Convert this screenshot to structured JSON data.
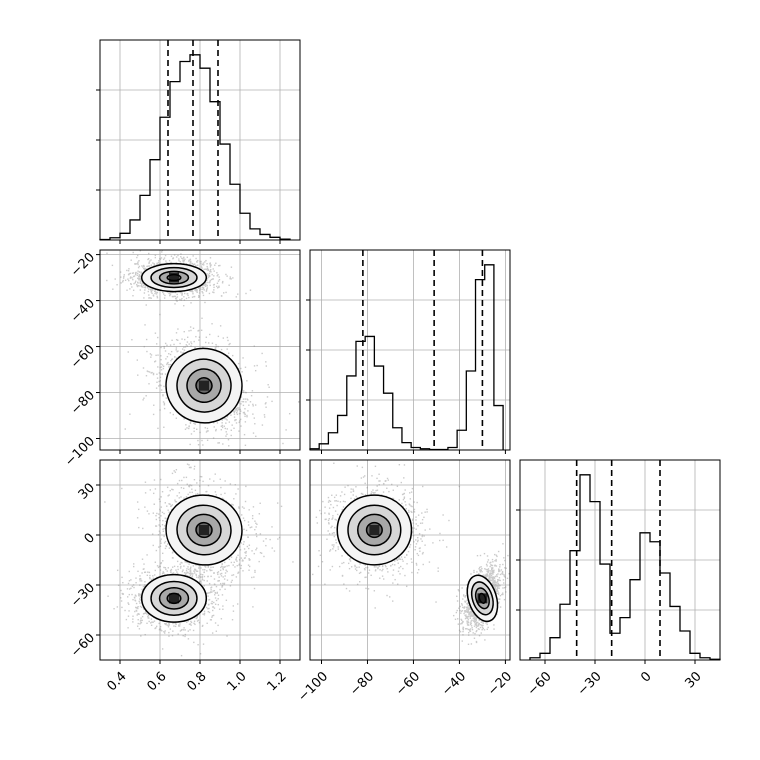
{
  "chart_data": {
    "type": "corner",
    "title": "",
    "parameters": [
      {
        "name": "",
        "range": [
          0.3,
          1.3
        ],
        "ticks": [
          0.4,
          0.6,
          0.8,
          1.0,
          1.2
        ],
        "tick_labels": [
          "0.4",
          "0.6",
          "0.8",
          "1.0",
          "1.2"
        ],
        "quantiles": [
          0.64,
          0.765,
          0.89
        ],
        "histogram": {
          "edges": [
            0.3,
            0.35,
            0.4,
            0.45,
            0.5,
            0.55,
            0.6,
            0.65,
            0.7,
            0.75,
            0.8,
            0.85,
            0.9,
            0.95,
            1.0,
            1.05,
            1.1,
            1.15,
            1.2,
            1.25
          ],
          "counts": [
            0.2,
            1.0,
            3.0,
            9.0,
            20.0,
            36.0,
            55.0,
            71.0,
            80.0,
            83.0,
            77.0,
            62.0,
            43.0,
            25.0,
            12.0,
            5.0,
            2.5,
            1.2,
            0.4
          ]
        }
      },
      {
        "name": "",
        "range": [
          -105,
          -18
        ],
        "ticks": [
          -100,
          -80,
          -60,
          -40,
          -20
        ],
        "tick_labels": [
          "−100",
          "−80",
          "−60",
          "−40",
          "−20"
        ],
        "quantiles": [
          -82,
          -51,
          -30
        ],
        "histogram": {
          "edges": [
            -105,
            -101,
            -97,
            -93,
            -89,
            -85,
            -81,
            -77,
            -73,
            -69,
            -65,
            -61,
            -57,
            -53,
            -49,
            -45,
            -41,
            -37,
            -33,
            -29,
            -25,
            -21
          ],
          "counts": [
            0.5,
            2.5,
            7.0,
            14.0,
            30.0,
            44.0,
            46.0,
            34.0,
            23.0,
            9.0,
            3.0,
            1.0,
            0.5,
            0.2,
            0.2,
            1.0,
            8.0,
            32.0,
            69.0,
            75.0,
            18.0
          ]
        }
      },
      {
        "name": "",
        "range": [
          -75,
          45
        ],
        "ticks": [
          -60,
          -30,
          0,
          30
        ],
        "tick_labels": [
          "−60",
          "−30",
          "0",
          "30"
        ],
        "quantiles": [
          -41,
          -20,
          9
        ],
        "histogram": {
          "edges": [
            -69,
            -63,
            -57,
            -51,
            -45,
            -39,
            -33,
            -27,
            -21,
            -15,
            -9,
            -3,
            3,
            9,
            15,
            21,
            27,
            33,
            39,
            45
          ],
          "counts": [
            1.0,
            3.0,
            10.0,
            25.0,
            49.0,
            83.0,
            71.0,
            43.0,
            12.0,
            19.0,
            36.0,
            57.0,
            53.0,
            39.0,
            24.0,
            13.0,
            3.0,
            1.0,
            0.3
          ]
        }
      }
    ],
    "joint": [
      {
        "x_param": 0,
        "y_param": 1,
        "modes": [
          {
            "mean": [
              0.67,
              -30
            ],
            "std": [
              0.085,
              3.2
            ],
            "rho": 0.0,
            "weight": 0.55
          },
          {
            "mean": [
              0.82,
              -77
            ],
            "std": [
              0.1,
              8.5
            ],
            "rho": -0.35,
            "weight": 0.45
          }
        ]
      },
      {
        "x_param": 0,
        "y_param": 2,
        "modes": [
          {
            "mean": [
              0.67,
              -38
            ],
            "std": [
              0.085,
              7.5
            ],
            "rho": 0.0,
            "weight": 0.55
          },
          {
            "mean": [
              0.82,
              3
            ],
            "std": [
              0.1,
              11.0
            ],
            "rho": -0.2,
            "weight": 0.45
          }
        ]
      },
      {
        "x_param": 1,
        "y_param": 2,
        "modes": [
          {
            "mean": [
              -30,
              -38
            ],
            "std": [
              3.2,
              7.5
            ],
            "rho": 0.5,
            "weight": 0.55
          },
          {
            "mean": [
              -77,
              3
            ],
            "std": [
              8.5,
              11.0
            ],
            "rho": 0.0,
            "weight": 0.45
          }
        ]
      }
    ]
  }
}
